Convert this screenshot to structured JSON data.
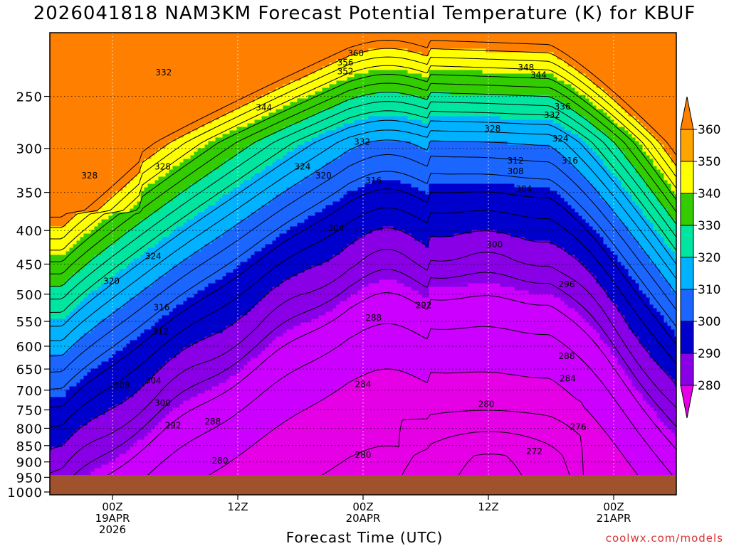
{
  "title": "2026041818 NAM3KM Forecast Potential Temperature (K) for KBUF",
  "credit": "coolwx.com/models",
  "chart_data": {
    "type": "contour",
    "title": "2026041818 NAM3KM Forecast Potential Temperature (K) for KBUF",
    "xlabel": "Forecast Time (UTC)",
    "ylabel": "",
    "units": "K",
    "y_axis": {
      "ticks": [
        250,
        300,
        350,
        400,
        450,
        500,
        550,
        600,
        650,
        700,
        750,
        800,
        850,
        900,
        950,
        1000
      ],
      "range": [
        1010,
        200
      ],
      "scale": "log"
    },
    "x_axis": {
      "ticks": [
        {
          "hour": 6,
          "lines": [
            "00Z",
            "19APR",
            "2026"
          ]
        },
        {
          "hour": 18,
          "lines": [
            "12Z"
          ]
        },
        {
          "hour": 30,
          "lines": [
            "00Z",
            "20APR"
          ]
        },
        {
          "hour": 42,
          "lines": [
            "12Z"
          ]
        },
        {
          "hour": 54,
          "lines": [
            "00Z",
            "21APR"
          ]
        }
      ],
      "range": [
        0,
        60
      ],
      "grid": "dotted"
    },
    "colorbar": {
      "levels": [
        280,
        290,
        300,
        310,
        320,
        330,
        340,
        350,
        360
      ],
      "colors": [
        "#cc00ff",
        "#8a00e6",
        "#0000cc",
        "#1a66ff",
        "#00b2ff",
        "#00e6a0",
        "#33cc00",
        "#ffff00",
        "#ffa500"
      ],
      "low_color": "#e600e6",
      "high_color": "#ff8000"
    },
    "contour_labels": [
      {
        "v": "360",
        "hr": 29.3,
        "p": 215
      },
      {
        "v": "356",
        "hr": 28.3,
        "p": 222
      },
      {
        "v": "352",
        "hr": 28.3,
        "p": 229
      },
      {
        "v": "348",
        "hr": 45.6,
        "p": 226
      },
      {
        "v": "344",
        "hr": 46.8,
        "p": 232
      },
      {
        "v": "344",
        "hr": 20.5,
        "p": 260
      },
      {
        "v": "336",
        "hr": 49.1,
        "p": 259
      },
      {
        "v": "332",
        "hr": 48.1,
        "p": 267
      },
      {
        "v": "332",
        "hr": 10.9,
        "p": 230
      },
      {
        "v": "332",
        "hr": 29.9,
        "p": 293
      },
      {
        "v": "328",
        "hr": 42.4,
        "p": 280
      },
      {
        "v": "324",
        "hr": 48.9,
        "p": 290
      },
      {
        "v": "328",
        "hr": 3.8,
        "p": 330
      },
      {
        "v": "328",
        "hr": 10.8,
        "p": 320
      },
      {
        "v": "324",
        "hr": 24.2,
        "p": 320
      },
      {
        "v": "320",
        "hr": 26.2,
        "p": 330
      },
      {
        "v": "316",
        "hr": 31.0,
        "p": 336
      },
      {
        "v": "312",
        "hr": 44.6,
        "p": 313
      },
      {
        "v": "316",
        "hr": 49.8,
        "p": 313
      },
      {
        "v": "308",
        "hr": 44.6,
        "p": 325
      },
      {
        "v": "304",
        "hr": 45.4,
        "p": 346
      },
      {
        "v": "304",
        "hr": 27.4,
        "p": 397
      },
      {
        "v": "324",
        "hr": 9.9,
        "p": 438
      },
      {
        "v": "300",
        "hr": 42.6,
        "p": 420
      },
      {
        "v": "320",
        "hr": 5.9,
        "p": 478
      },
      {
        "v": "296",
        "hr": 49.5,
        "p": 483
      },
      {
        "v": "316",
        "hr": 10.7,
        "p": 524
      },
      {
        "v": "292",
        "hr": 35.8,
        "p": 520
      },
      {
        "v": "288",
        "hr": 31.0,
        "p": 543
      },
      {
        "v": "312",
        "hr": 10.6,
        "p": 570
      },
      {
        "v": "288",
        "hr": 49.5,
        "p": 621
      },
      {
        "v": "284",
        "hr": 49.6,
        "p": 672
      },
      {
        "v": "308",
        "hr": 6.9,
        "p": 689
      },
      {
        "v": "304",
        "hr": 9.9,
        "p": 677
      },
      {
        "v": "284",
        "hr": 30.0,
        "p": 686
      },
      {
        "v": "300",
        "hr": 10.8,
        "p": 732
      },
      {
        "v": "280",
        "hr": 41.8,
        "p": 735
      },
      {
        "v": "292",
        "hr": 11.8,
        "p": 792
      },
      {
        "v": "288",
        "hr": 15.6,
        "p": 781
      },
      {
        "v": "276",
        "hr": 50.6,
        "p": 796
      },
      {
        "v": "272",
        "hr": 46.4,
        "p": 868
      },
      {
        "v": "280",
        "hr": 16.3,
        "p": 896
      },
      {
        "v": "280",
        "hr": 30.0,
        "p": 879
      }
    ]
  }
}
